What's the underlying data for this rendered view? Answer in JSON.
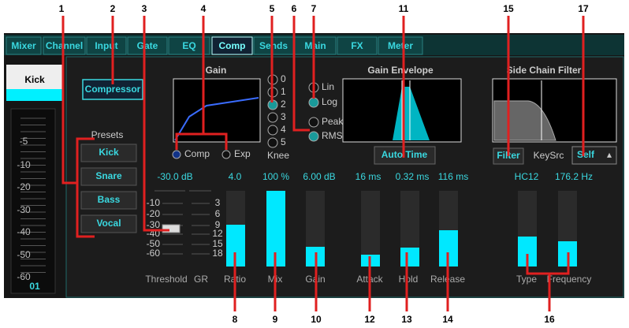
{
  "callouts": [
    "1",
    "2",
    "3",
    "4",
    "5",
    "6",
    "7",
    "8",
    "9",
    "10",
    "11",
    "12",
    "13",
    "14",
    "15",
    "16",
    "17"
  ],
  "tabs": [
    "Mixer",
    "Channel",
    "Input",
    "Gate",
    "EQ",
    "Comp",
    "Sends",
    "Main",
    "FX",
    "Meter"
  ],
  "channel": {
    "name": "Kick",
    "number": "01",
    "meter_scale": [
      "-5",
      "-10",
      "-20",
      "-30",
      "-40",
      "-50",
      "-60"
    ]
  },
  "compressor_button": "Compressor",
  "presets": {
    "label": "Presets",
    "items": [
      "Kick",
      "Snare",
      "Bass",
      "Vocal"
    ]
  },
  "gain_graph": {
    "title": "Gain",
    "modes": [
      "Comp",
      "Exp"
    ]
  },
  "knee": {
    "options": [
      "0",
      "1",
      "2",
      "3",
      "4",
      "5"
    ],
    "label": "Knee"
  },
  "detector": {
    "scale": [
      "Lin",
      "Log"
    ],
    "mode": [
      "Peak",
      "RMS"
    ]
  },
  "envelope": {
    "title": "Gain Envelope",
    "button": "Auto Time"
  },
  "side_chain": {
    "title": "Side Chain Filter",
    "button": "Filter",
    "key_source_label": "KeySrc",
    "key_source": "Self"
  },
  "threshold_scale": [
    "-10",
    "-20",
    "-30",
    "-40",
    "-50",
    "-60"
  ],
  "gr_scale": [
    "3",
    "6",
    "9",
    "12",
    "15",
    "18"
  ],
  "controls": [
    {
      "value": "-30.0 dB",
      "label": "Threshold"
    },
    {
      "label": "GR"
    },
    {
      "value": "4.0",
      "label": "Ratio"
    },
    {
      "value": "100 %",
      "label": "Mix"
    },
    {
      "value": "6.00 dB",
      "label": "Gain"
    },
    {
      "value": "16 ms",
      "label": "Attack"
    },
    {
      "value": "0.32 ms",
      "label": "Hold"
    },
    {
      "value": "116 ms",
      "label": "Release"
    },
    {
      "value": "HC12",
      "label": "Type"
    },
    {
      "value": "176.2 Hz",
      "label": "Frequency"
    }
  ]
}
